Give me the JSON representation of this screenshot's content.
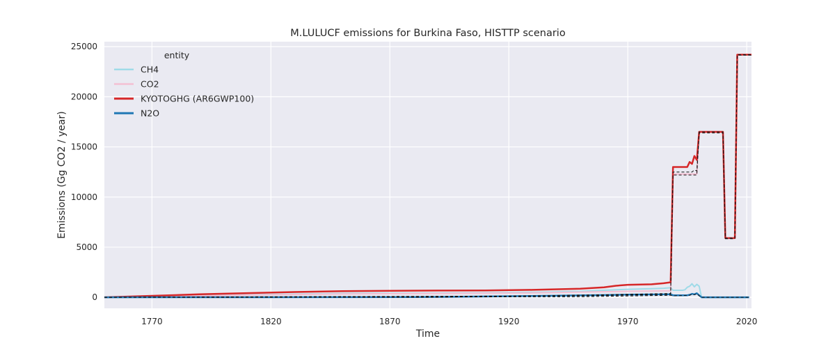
{
  "chart_data": {
    "type": "line",
    "title": "M.LULUCF emissions for Burkina Faso, HISTTP scenario",
    "xlabel": "Time",
    "ylabel": "Emissions (Gg CO2 / year)",
    "xlim": [
      1750,
      2022
    ],
    "ylim": [
      -1100,
      25500
    ],
    "x_ticks": [
      1770,
      1820,
      1870,
      1920,
      1970,
      2020
    ],
    "y_ticks": [
      0,
      5000,
      10000,
      15000,
      20000,
      25000
    ],
    "grid": true,
    "background": "#eaeaf2",
    "legend": {
      "title": "entity",
      "placement": "top-left"
    },
    "series": [
      {
        "name": "CH4",
        "color": "#9fdbe8",
        "linewidth": 2,
        "points": [
          [
            1750,
            0
          ],
          [
            1770,
            80
          ],
          [
            1790,
            180
          ],
          [
            1810,
            260
          ],
          [
            1830,
            320
          ],
          [
            1850,
            380
          ],
          [
            1870,
            400
          ],
          [
            1890,
            420
          ],
          [
            1910,
            450
          ],
          [
            1930,
            500
          ],
          [
            1950,
            600
          ],
          [
            1960,
            700
          ],
          [
            1970,
            800
          ],
          [
            1980,
            850
          ],
          [
            1985,
            900
          ],
          [
            1988,
            950
          ],
          [
            1989,
            700
          ],
          [
            1993,
            700
          ],
          [
            1994,
            750
          ],
          [
            1995,
            1000
          ],
          [
            1996,
            1100
          ],
          [
            1997,
            1350
          ],
          [
            1998,
            1050
          ],
          [
            1999,
            1300
          ],
          [
            2000,
            1100
          ],
          [
            2001,
            0
          ],
          [
            2021,
            0
          ]
        ]
      },
      {
        "name": "CO2",
        "color": "#f4bfd2",
        "linewidth": 2,
        "points": [
          [
            1750,
            0
          ],
          [
            1770,
            60
          ],
          [
            1790,
            140
          ],
          [
            1810,
            230
          ],
          [
            1830,
            280
          ],
          [
            1850,
            330
          ],
          [
            1870,
            360
          ],
          [
            1890,
            380
          ],
          [
            1910,
            400
          ],
          [
            1930,
            440
          ],
          [
            1950,
            520
          ],
          [
            1970,
            600
          ],
          [
            1988,
            650
          ],
          [
            1989,
            12300
          ],
          [
            1999,
            12300
          ],
          [
            2000,
            16500
          ],
          [
            2010,
            16500
          ],
          [
            2011,
            5900
          ],
          [
            2015,
            5900
          ],
          [
            2016,
            24200
          ],
          [
            2022,
            24200
          ]
        ]
      },
      {
        "name": "KYOTOGHG (AR6GWP100)",
        "color": "#d62728",
        "linewidth": 2.5,
        "points": [
          [
            1750,
            0
          ],
          [
            1770,
            150
          ],
          [
            1790,
            300
          ],
          [
            1810,
            420
          ],
          [
            1830,
            530
          ],
          [
            1850,
            620
          ],
          [
            1870,
            650
          ],
          [
            1890,
            670
          ],
          [
            1910,
            690
          ],
          [
            1930,
            740
          ],
          [
            1950,
            850
          ],
          [
            1960,
            1000
          ],
          [
            1965,
            1150
          ],
          [
            1970,
            1250
          ],
          [
            1980,
            1300
          ],
          [
            1985,
            1400
          ],
          [
            1988,
            1500
          ],
          [
            1989,
            13000
          ],
          [
            1995,
            13000
          ],
          [
            1996,
            13500
          ],
          [
            1997,
            13300
          ],
          [
            1998,
            14100
          ],
          [
            1999,
            13700
          ],
          [
            2000,
            16500
          ],
          [
            2010,
            16500
          ],
          [
            2011,
            5900
          ],
          [
            2015,
            5900
          ],
          [
            2016,
            24200
          ],
          [
            2022,
            24200
          ]
        ]
      },
      {
        "name": "N2O",
        "color": "#1f77b4",
        "linewidth": 2.5,
        "points": [
          [
            1750,
            0
          ],
          [
            1880,
            20
          ],
          [
            1900,
            60
          ],
          [
            1930,
            130
          ],
          [
            1960,
            220
          ],
          [
            1970,
            270
          ],
          [
            1988,
            300
          ],
          [
            1989,
            200
          ],
          [
            1995,
            200
          ],
          [
            1996,
            250
          ],
          [
            1997,
            350
          ],
          [
            1998,
            300
          ],
          [
            1999,
            400
          ],
          [
            2000,
            200
          ],
          [
            2001,
            0
          ],
          [
            2021,
            0
          ]
        ]
      }
    ],
    "reference_lines": [
      {
        "color": "#111111",
        "dash": "4,3",
        "points": [
          [
            1750,
            0
          ],
          [
            1890,
            10
          ],
          [
            1920,
            120
          ],
          [
            1960,
            250
          ],
          [
            1988,
            380
          ],
          [
            1989,
            12500
          ],
          [
            1997,
            12500
          ],
          [
            1998,
            12700
          ],
          [
            1999,
            12600
          ],
          [
            2000,
            16500
          ],
          [
            2010,
            16500
          ],
          [
            2011,
            5900
          ],
          [
            2015,
            5900
          ],
          [
            2016,
            24200
          ],
          [
            2022,
            24200
          ]
        ]
      },
      {
        "color": "#111111",
        "dash": "4,3",
        "points": [
          [
            1750,
            0
          ],
          [
            1950,
            150
          ],
          [
            1988,
            300
          ],
          [
            1989,
            12200
          ],
          [
            1999,
            12200
          ],
          [
            2000,
            16400
          ],
          [
            2010,
            16400
          ],
          [
            2011,
            5850
          ],
          [
            2015,
            5850
          ],
          [
            2016,
            24150
          ],
          [
            2022,
            24150
          ]
        ]
      },
      {
        "color": "#111111",
        "dash": "4,3",
        "points": [
          [
            1750,
            0
          ],
          [
            1950,
            60
          ],
          [
            1988,
            200
          ],
          [
            1989,
            150
          ],
          [
            1996,
            200
          ],
          [
            1997,
            300
          ],
          [
            1998,
            250
          ],
          [
            1999,
            350
          ],
          [
            2000,
            150
          ],
          [
            2001,
            0
          ],
          [
            2021,
            0
          ]
        ]
      }
    ]
  }
}
